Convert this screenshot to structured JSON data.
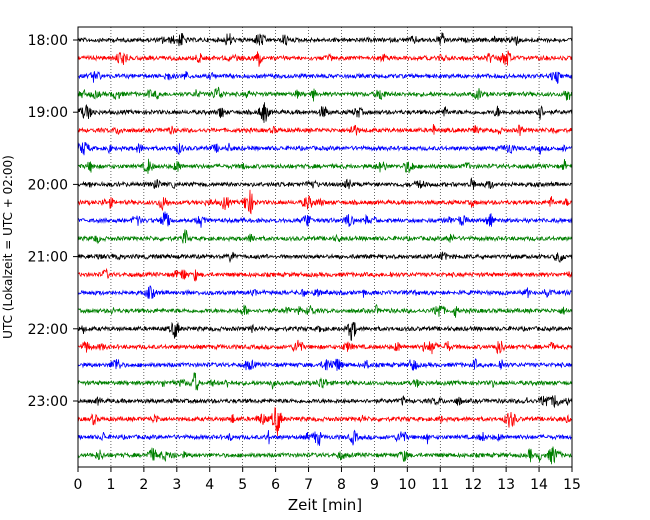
{
  "chart_data": {
    "type": "line",
    "xlabel": "Zeit  [min]",
    "ylabel": "UTC (Lokalzeit = UTC + 02:00)",
    "xlim": [
      0,
      15
    ],
    "x_ticks": [
      0,
      1,
      2,
      3,
      4,
      5,
      6,
      7,
      8,
      9,
      10,
      11,
      12,
      13,
      14,
      15
    ],
    "y_ticks": [
      "18:00",
      "19:00",
      "20:00",
      "21:00",
      "22:00",
      "23:00"
    ],
    "grid": "vertical dotted lines at each minute",
    "colors": [
      "#000000",
      "#ff0000",
      "#0000ff",
      "#008000"
    ],
    "traces": {
      "count": 24,
      "start": "18:00",
      "interval_minutes": 15,
      "color_cycle": [
        "black",
        "red",
        "blue",
        "green"
      ]
    }
  }
}
